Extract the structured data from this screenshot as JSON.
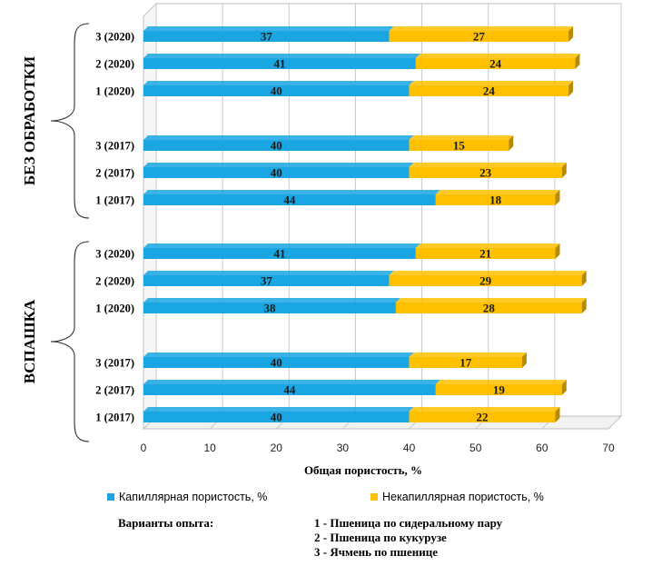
{
  "chart_data": {
    "type": "bar",
    "orientation": "horizontal",
    "stacked": true,
    "xlabel": "Общая пористость, %",
    "xlim": [
      0,
      70
    ],
    "xticks": [
      0,
      10,
      20,
      30,
      40,
      50,
      60,
      70
    ],
    "grid": true,
    "legend_position": "bottom",
    "groups": [
      {
        "label": "БЕЗ ОБРАБОТКИ",
        "categories": [
          "3 (2020)",
          "2 (2020)",
          "1 (2020)",
          "3 (2017)",
          "2 (2017)",
          "1 (2017)"
        ]
      },
      {
        "label": "ВСПАШКА",
        "categories": [
          "3 (2020)",
          "2 (2020)",
          "1 (2020)",
          "3 (2017)",
          "2 (2017)",
          "1 (2017)"
        ]
      }
    ],
    "series": [
      {
        "name": "Капиллярная пористость, %",
        "color": "#1aa6e2",
        "values": [
          37,
          41,
          40,
          40,
          40,
          44,
          41,
          37,
          38,
          40,
          44,
          40
        ]
      },
      {
        "name": "Некапиллярная пористость, %",
        "color": "#ffc000",
        "values": [
          27,
          24,
          24,
          15,
          23,
          18,
          21,
          29,
          28,
          17,
          19,
          22
        ]
      }
    ]
  },
  "notes": {
    "title": "Варианты опыта:",
    "items": [
      "1 - Пшеница по сидеральному пару",
      "2 - Пшеница по кукурузе",
      "3 - Ячмень по пшенице"
    ]
  }
}
